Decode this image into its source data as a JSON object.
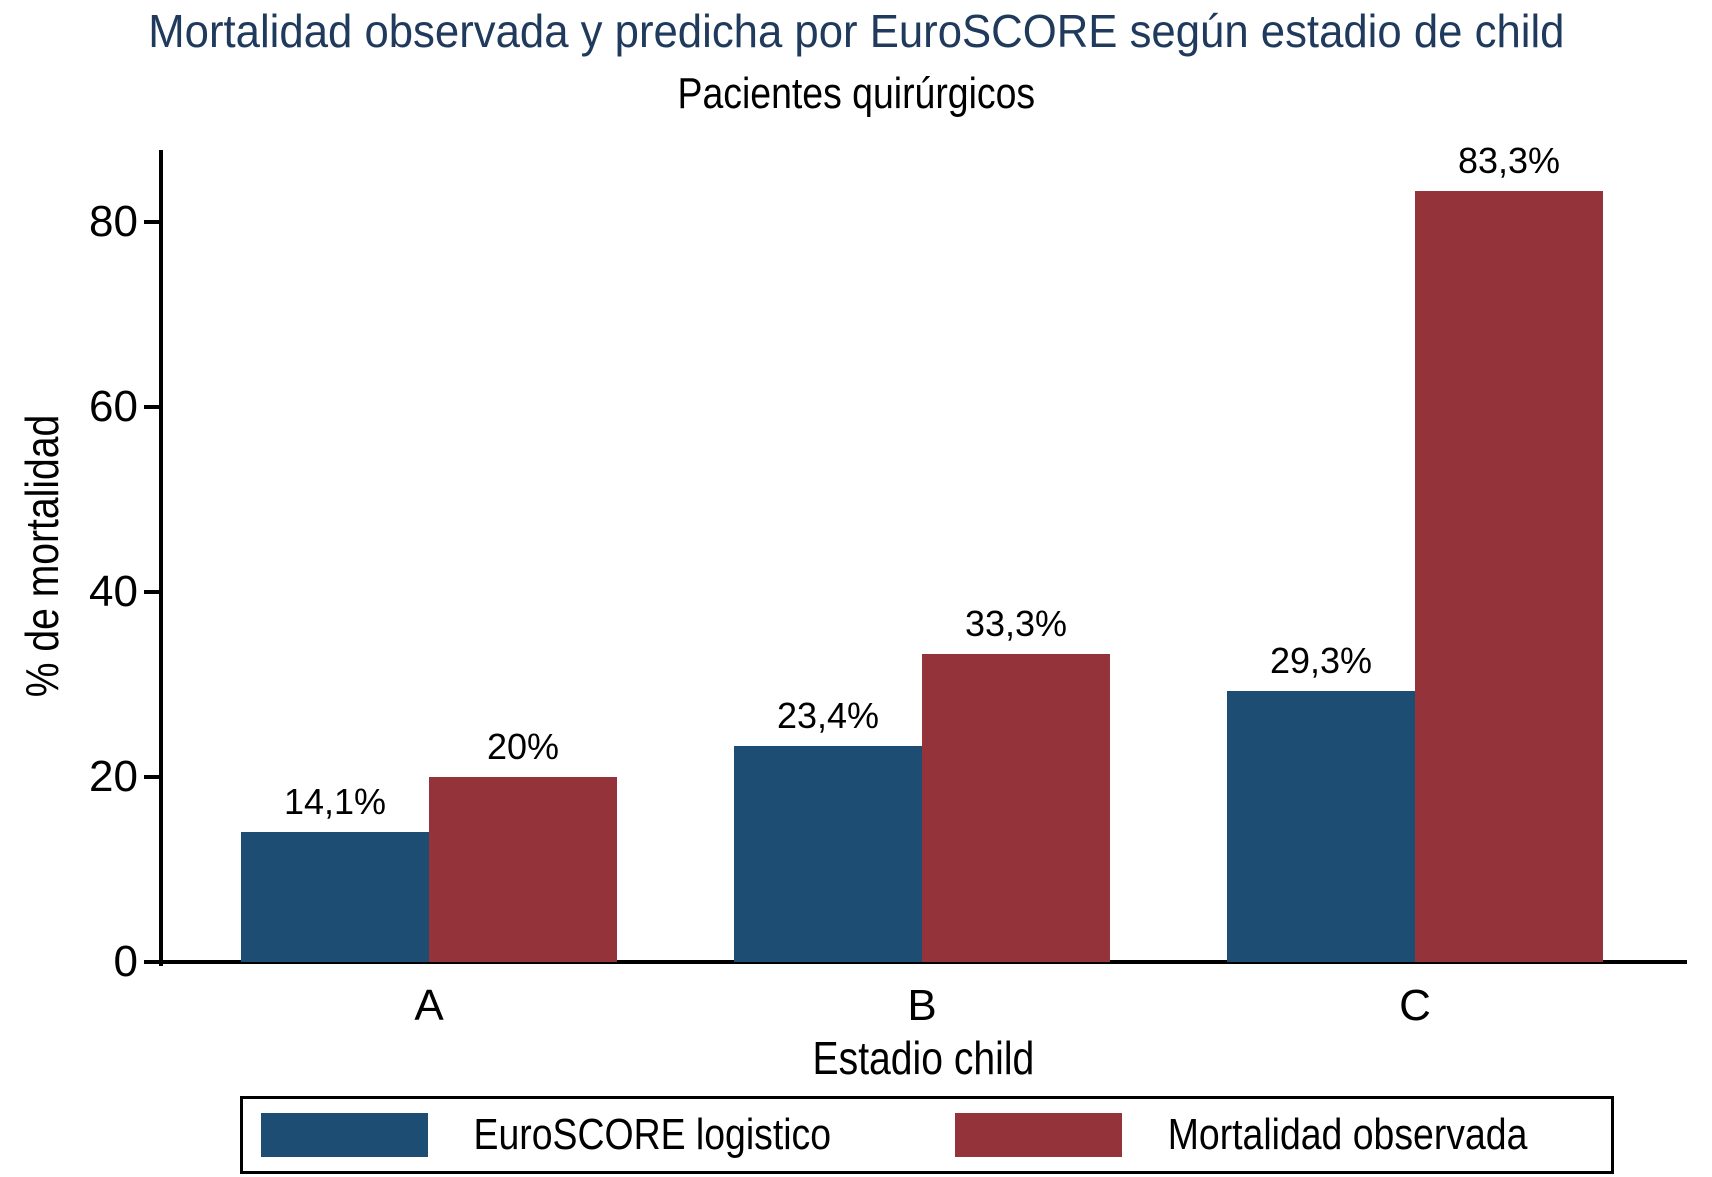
{
  "title": "Mortalidad observada y predicha por EuroSCORE según estadio de child",
  "subtitle": "Pacientes quirúrgicos",
  "title_color": "#1F3A5C",
  "chart_data": {
    "type": "bar",
    "title": "Mortalidad observada y predicha por EuroSCORE según estadio de child",
    "subtitle": "Pacientes quirúrgicos",
    "categories": [
      "A",
      "B",
      "C"
    ],
    "series": [
      {
        "name": "EuroSCORE logistico",
        "color": "#1E4D74",
        "values": [
          14.1,
          23.4,
          29.3
        ],
        "value_labels": [
          "14,1%",
          "23,4%",
          "29,3%"
        ]
      },
      {
        "name": "Mortalidad observada",
        "color": "#94343A",
        "values": [
          20,
          33.3,
          83.3
        ],
        "value_labels": [
          "20%",
          "33,3%",
          "83,3%"
        ]
      }
    ],
    "xlabel": "Estadio child",
    "ylabel": "% de mortalidad",
    "ylim": [
      0,
      88
    ],
    "yticks": [
      0,
      20,
      40,
      60,
      80
    ],
    "grid": false,
    "legend_position": "bottom"
  }
}
